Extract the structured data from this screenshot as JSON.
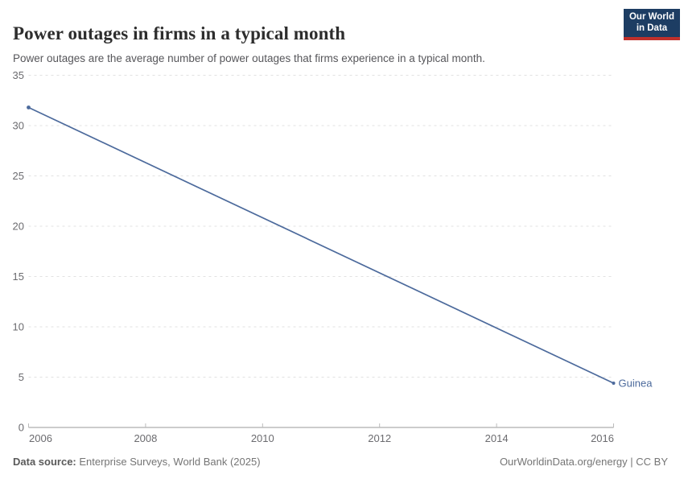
{
  "header": {
    "title": "Power outages in firms in a typical month",
    "subtitle": "Power outages are the average number of power outages that firms experience in a typical month.",
    "logo": {
      "line1": "Our World",
      "line2": "in Data",
      "bg_color": "#1d3d63",
      "bar_color": "#c0302b"
    }
  },
  "chart_data": {
    "type": "line",
    "title": "Power outages in firms in a typical month",
    "x": [
      2006,
      2016
    ],
    "series": [
      {
        "name": "Guinea",
        "values": [
          31.8,
          4.4
        ],
        "color": "#4c6a9c"
      }
    ],
    "xlabel": "",
    "ylabel": "",
    "xlim": [
      2006,
      2016
    ],
    "ylim": [
      0,
      35
    ],
    "xticks": [
      2006,
      2008,
      2010,
      2012,
      2014,
      2016
    ],
    "yticks": [
      0,
      5,
      10,
      15,
      20,
      25,
      30,
      35
    ],
    "grid": "horizontal-dashed",
    "legend_position": "end-of-line-label",
    "entity_label": "Guinea"
  },
  "footer": {
    "source_label": "Data source:",
    "source_value": " Enterprise Surveys, World Bank (2025)",
    "right_text": "OurWorldinData.org/energy | CC BY"
  },
  "colors": {
    "line": "#4c6a9c",
    "gridline": "#e1e1e1",
    "axis": "#999999",
    "tick": "#bbbbbb",
    "tick_label": "#6b6b6f"
  }
}
